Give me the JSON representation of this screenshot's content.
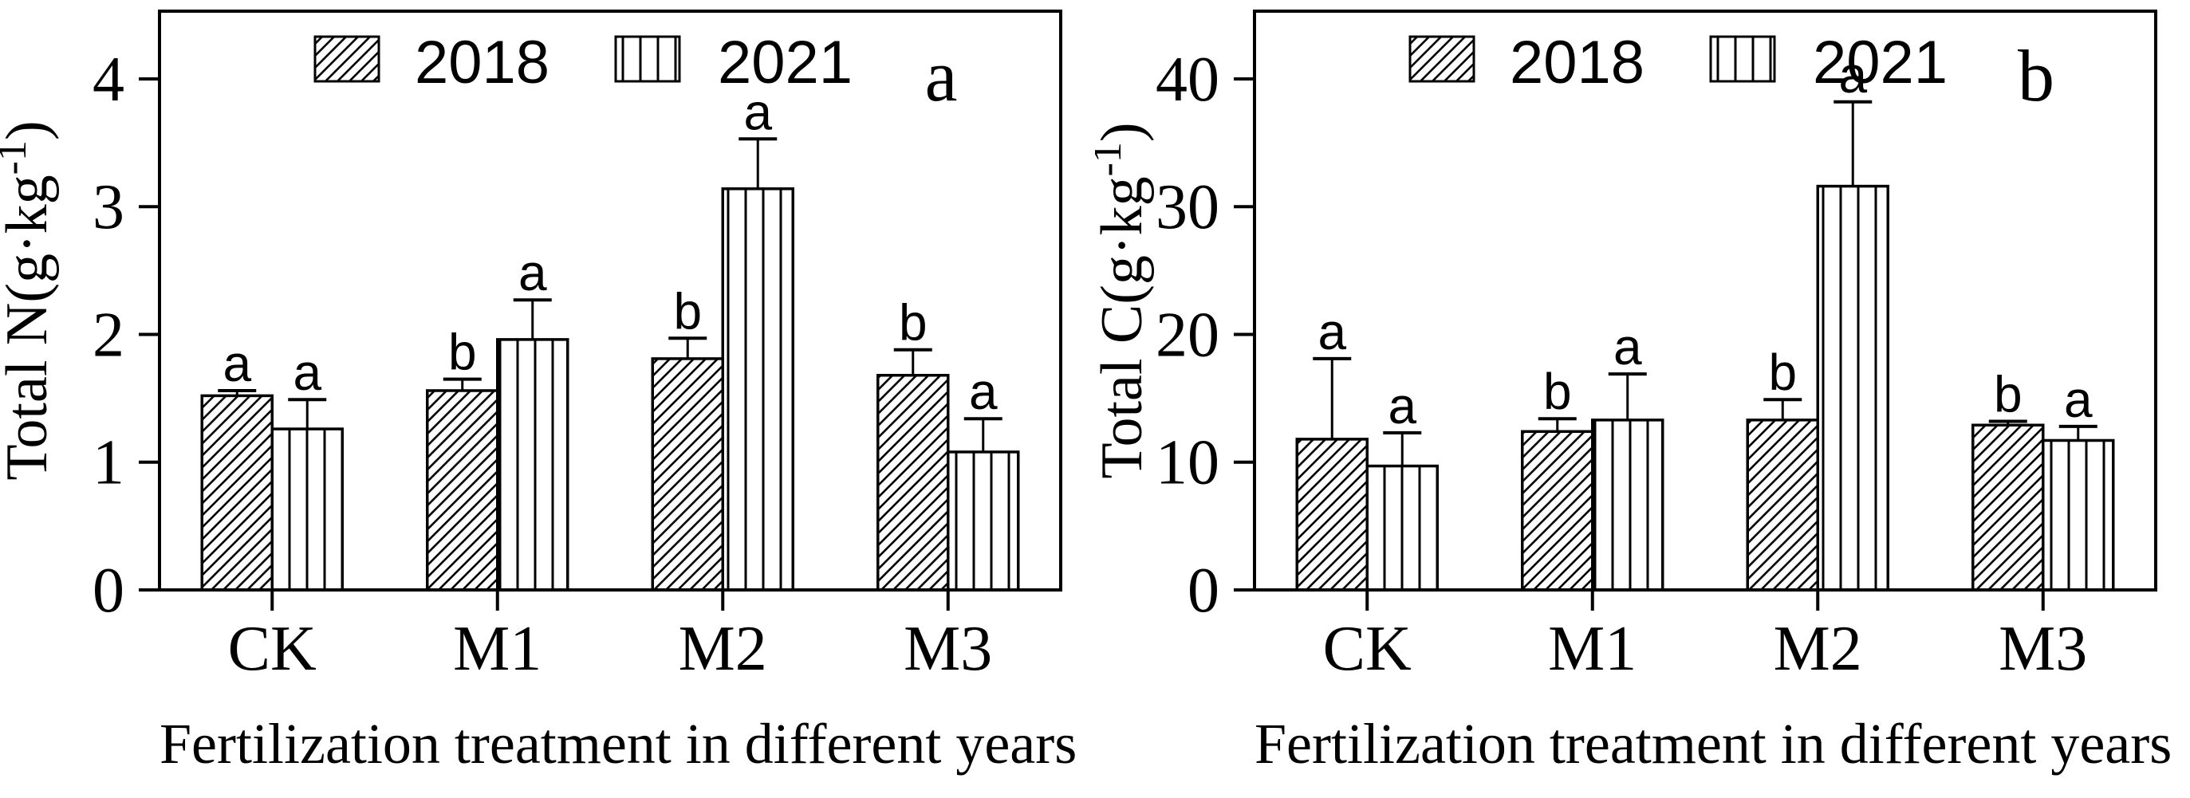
{
  "figure": {
    "background_color": "#ffffff",
    "ink_color": "#000000"
  },
  "chart_data": [
    {
      "type": "bar",
      "panel_label": "a",
      "ylabel": "Total N(g·kg⁻¹)",
      "ylabel_parts": {
        "prefix": "Total N(g·kg",
        "sup": "-1",
        "suffix": ")"
      },
      "xlabel": "Fertilization treatment in different years",
      "categories": [
        "CK",
        "M1",
        "M2",
        "M3"
      ],
      "ylim": [
        0,
        4.53
      ],
      "yticks": [
        0,
        1,
        2,
        3,
        4
      ],
      "grid": false,
      "legend_position": "top-center-inside",
      "legend": [
        "2018",
        "2021"
      ],
      "series": [
        {
          "name": "2018",
          "pattern": "diagonal-hatch",
          "values": [
            1.52,
            1.56,
            1.81,
            1.68
          ],
          "errors": [
            0.04,
            0.09,
            0.16,
            0.2
          ],
          "sig_letters": [
            "a",
            "b",
            "b",
            "b"
          ]
        },
        {
          "name": "2021",
          "pattern": "vertical-hatch",
          "values": [
            1.26,
            1.96,
            3.14,
            1.08
          ],
          "errors": [
            0.23,
            0.31,
            0.39,
            0.26
          ],
          "sig_letters": [
            "a",
            "a",
            "a",
            "a"
          ]
        }
      ]
    },
    {
      "type": "bar",
      "panel_label": "b",
      "ylabel": "Total C(g·kg⁻¹)",
      "ylabel_parts": {
        "prefix": "Total C(g·kg",
        "sup": "-1",
        "suffix": ")"
      },
      "xlabel": "Fertilization treatment in different years",
      "categories": [
        "CK",
        "M1",
        "M2",
        "M3"
      ],
      "ylim": [
        0,
        45.3
      ],
      "yticks": [
        0,
        10,
        20,
        30,
        40
      ],
      "grid": false,
      "legend_position": "top-center-inside",
      "legend": [
        "2018",
        "2021"
      ],
      "series": [
        {
          "name": "2018",
          "pattern": "diagonal-hatch",
          "values": [
            11.8,
            12.4,
            13.3,
            12.9
          ],
          "errors": [
            6.3,
            1.0,
            1.6,
            0.3
          ],
          "sig_letters": [
            "a",
            "b",
            "b",
            "b"
          ]
        },
        {
          "name": "2021",
          "pattern": "vertical-hatch",
          "values": [
            9.7,
            13.3,
            31.6,
            11.7
          ],
          "errors": [
            2.6,
            3.6,
            6.6,
            1.1
          ],
          "sig_letters": [
            "a",
            "a",
            "a",
            "a"
          ]
        }
      ]
    }
  ]
}
